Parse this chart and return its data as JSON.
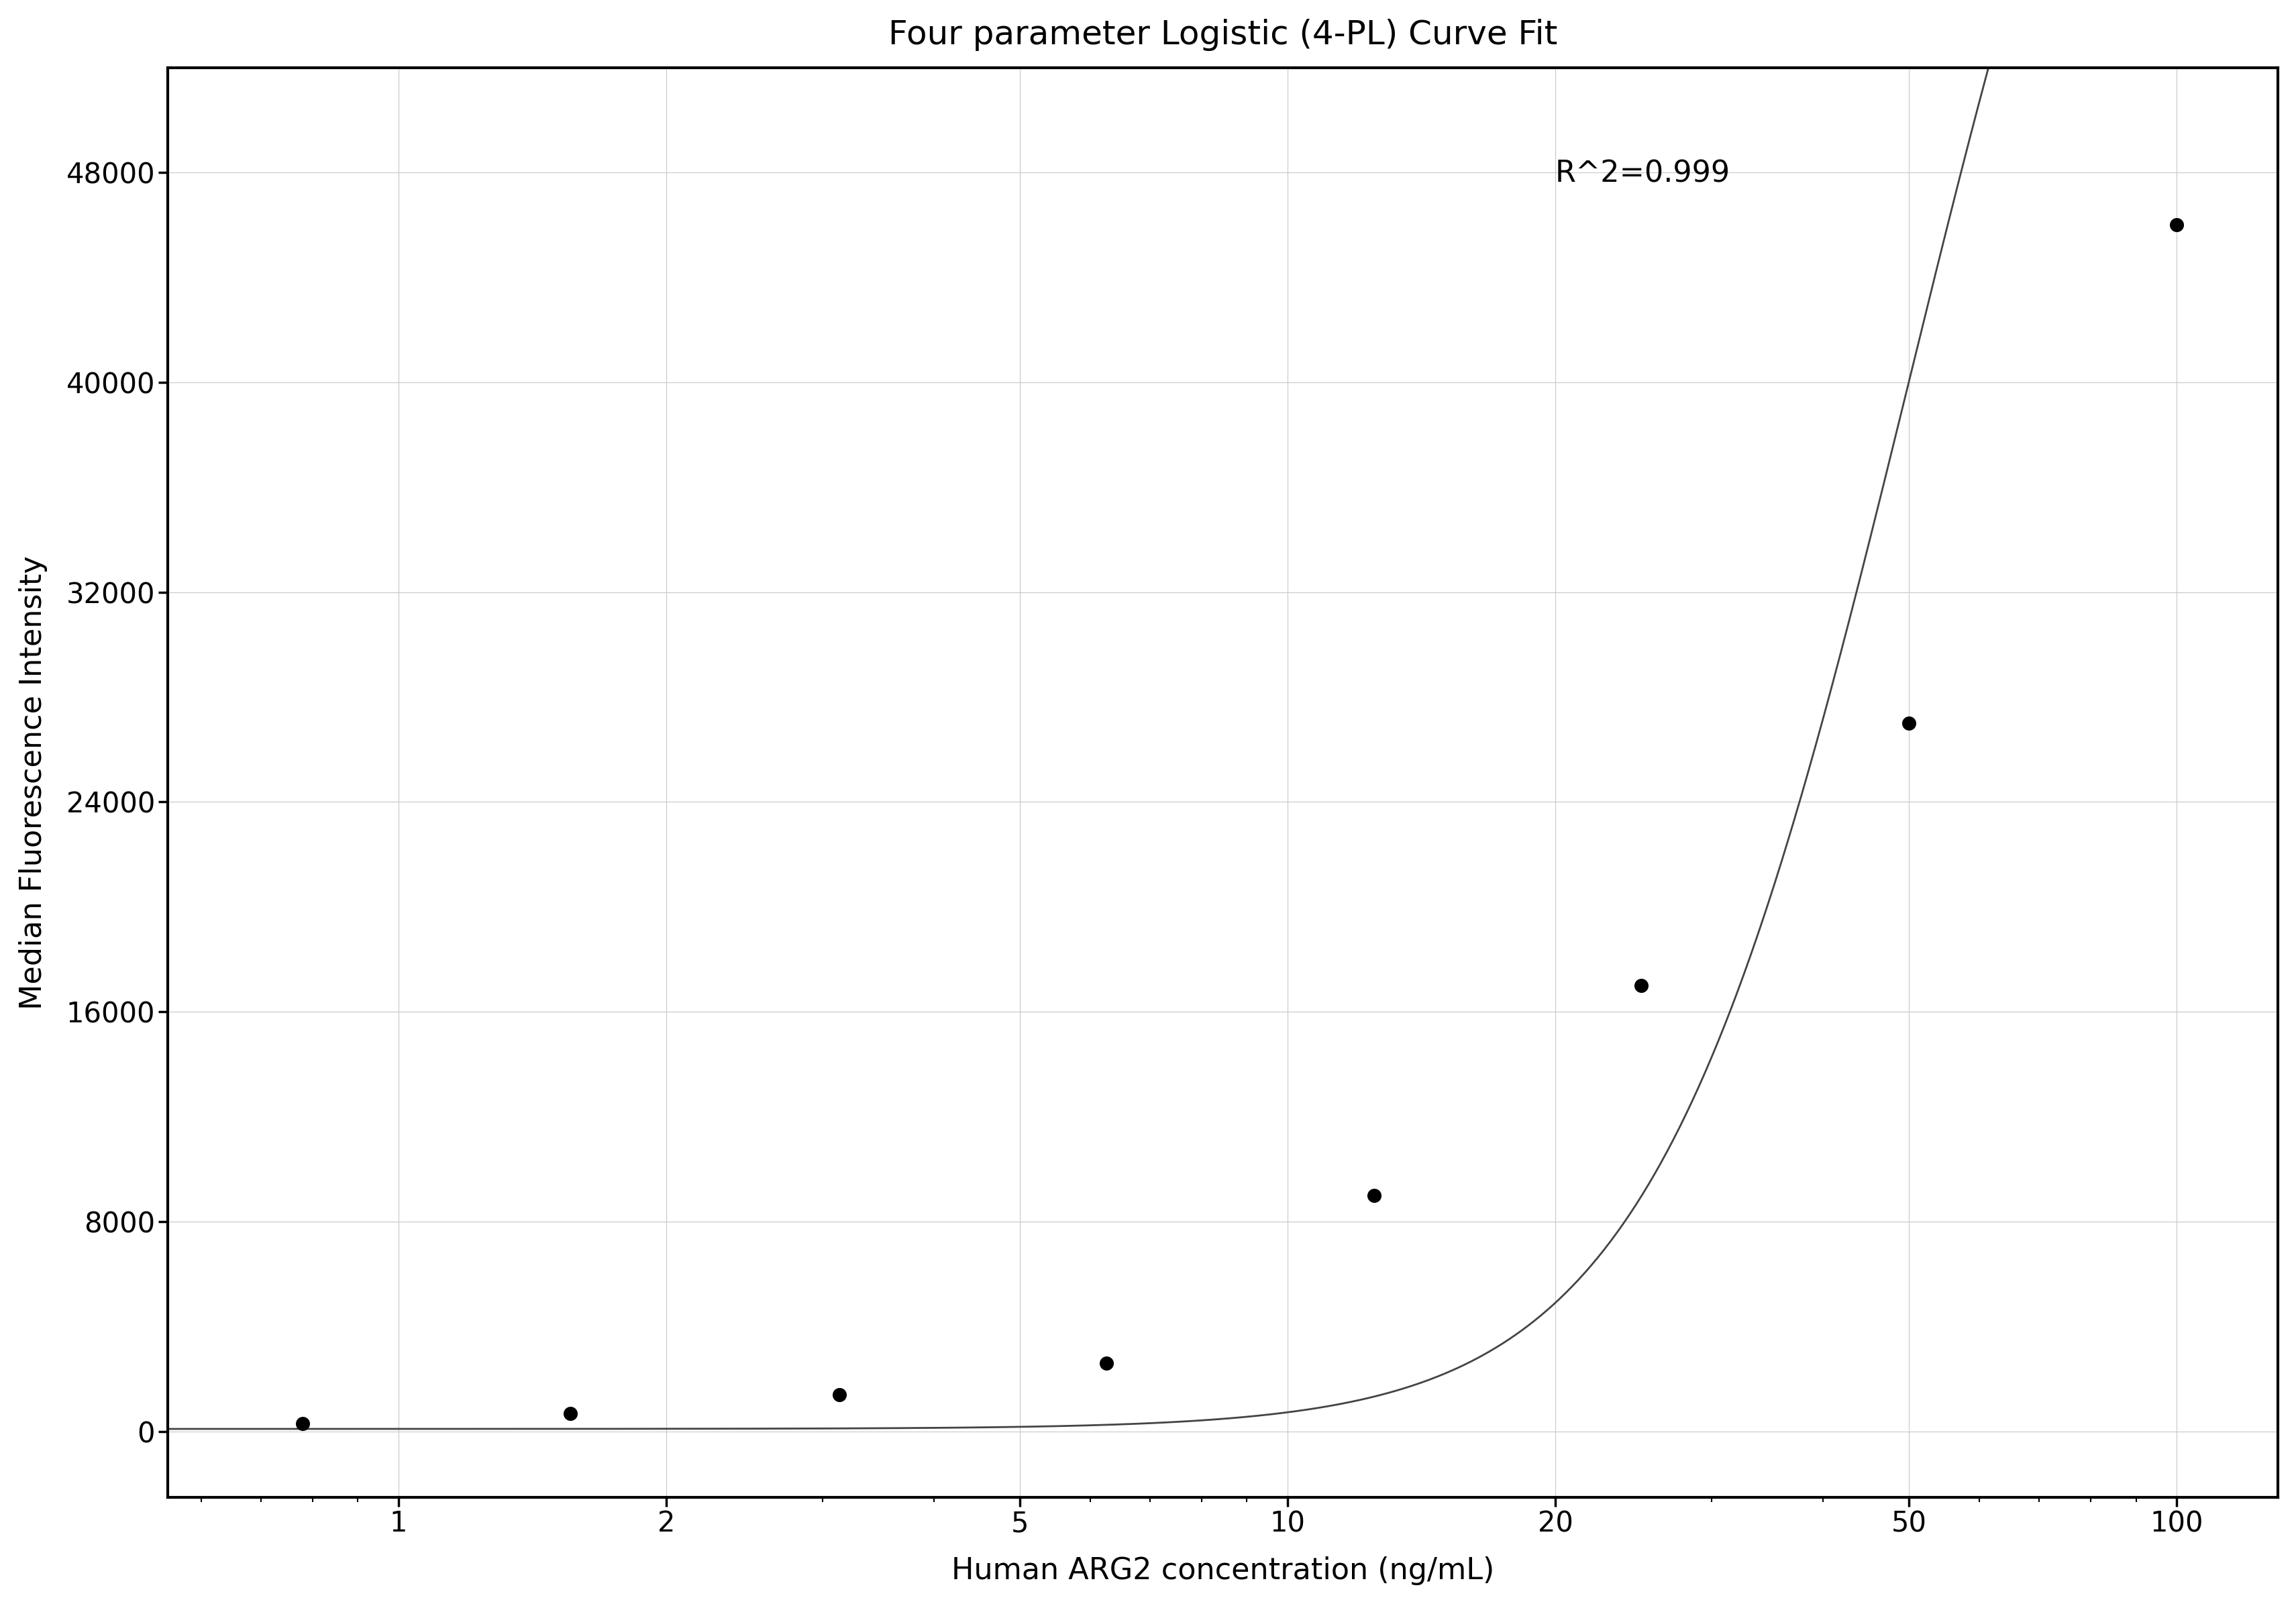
{
  "title": "Four parameter Logistic (4-PL) Curve Fit",
  "xlabel": "Human ARG2 concentration (ng/mL)",
  "ylabel": "Median Fluorescence Intensity",
  "r_squared_text": "R^2=0.999",
  "data_x": [
    0.78,
    1.56,
    3.13,
    6.25,
    12.5,
    25,
    50,
    100
  ],
  "data_y": [
    300,
    700,
    1400,
    2600,
    9000,
    17000,
    27000,
    46000
  ],
  "xmin": 0.55,
  "xmax": 130,
  "ymin": -2500,
  "ymax": 52000,
  "yticks": [
    0,
    8000,
    16000,
    24000,
    32000,
    40000,
    48000
  ],
  "ytick_labels": [
    "0",
    "8000",
    "16000",
    "24000",
    "32000",
    "40000",
    "48000"
  ],
  "xticks": [
    1,
    2,
    5,
    10,
    20,
    50,
    100
  ],
  "background_color": "#ffffff",
  "grid_color": "#c8c8c8",
  "curve_color": "#444444",
  "dot_color": "#000000",
  "title_fontsize": 36,
  "label_fontsize": 32,
  "tick_fontsize": 30,
  "annotation_fontsize": 32,
  "r2_x": 20,
  "r2_y": 48500,
  "dot_size": 200,
  "linewidth": 2.0,
  "spine_linewidth": 3.0
}
